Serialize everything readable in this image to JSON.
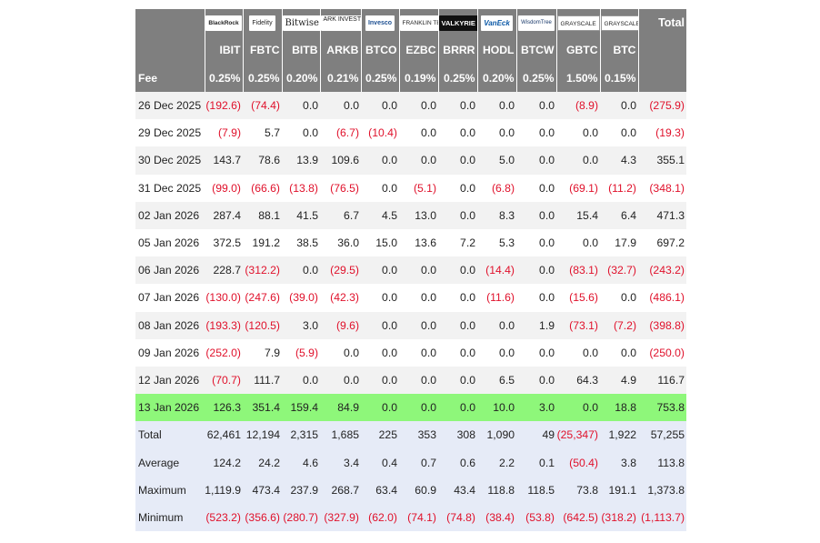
{
  "header": {
    "total_label": "Total",
    "fee_label": "Fee",
    "funds": [
      {
        "logo": "BlackRock",
        "ticker": "IBIT",
        "fee": "0.25%"
      },
      {
        "logo": "Fidelity",
        "ticker": "FBTC",
        "fee": "0.25%"
      },
      {
        "logo": "Bitwise",
        "ticker": "BITB",
        "fee": "0.20%"
      },
      {
        "logo": "ARK INVEST",
        "ticker": "ARKB",
        "fee": "0.21%"
      },
      {
        "logo": "Invesco",
        "ticker": "BTCO",
        "fee": "0.25%"
      },
      {
        "logo": "FRANKLIN TEMPLETON",
        "ticker": "EZBC",
        "fee": "0.19%"
      },
      {
        "logo": "VALKYRIE",
        "ticker": "BRRR",
        "fee": "0.25%"
      },
      {
        "logo": "VanEck",
        "ticker": "HODL",
        "fee": "0.20%"
      },
      {
        "logo": "WisdomTree",
        "ticker": "BTCW",
        "fee": "0.25%"
      },
      {
        "logo": "GRAYSCALE",
        "ticker": "GBTC",
        "fee": "1.50%"
      },
      {
        "logo": "GRAYSCALE",
        "ticker": "BTC",
        "fee": "0.15%"
      }
    ]
  },
  "rows": [
    {
      "date": "26 Dec 2025",
      "values": [
        "(192.6)",
        "(74.4)",
        "0.0",
        "0.0",
        "0.0",
        "0.0",
        "0.0",
        "0.0",
        "0.0",
        "(8.9)",
        "0.0"
      ],
      "total": "(275.9)"
    },
    {
      "date": "29 Dec 2025",
      "values": [
        "(7.9)",
        "5.7",
        "0.0",
        "(6.7)",
        "(10.4)",
        "0.0",
        "0.0",
        "0.0",
        "0.0",
        "0.0",
        "0.0"
      ],
      "total": "(19.3)"
    },
    {
      "date": "30 Dec 2025",
      "values": [
        "143.7",
        "78.6",
        "13.9",
        "109.6",
        "0.0",
        "0.0",
        "0.0",
        "5.0",
        "0.0",
        "0.0",
        "4.3"
      ],
      "total": "355.1"
    },
    {
      "date": "31 Dec 2025",
      "values": [
        "(99.0)",
        "(66.6)",
        "(13.8)",
        "(76.5)",
        "0.0",
        "(5.1)",
        "0.0",
        "(6.8)",
        "0.0",
        "(69.1)",
        "(11.2)"
      ],
      "total": "(348.1)"
    },
    {
      "date": "02 Jan 2026",
      "values": [
        "287.4",
        "88.1",
        "41.5",
        "6.7",
        "4.5",
        "13.0",
        "0.0",
        "8.3",
        "0.0",
        "15.4",
        "6.4"
      ],
      "total": "471.3"
    },
    {
      "date": "05 Jan 2026",
      "values": [
        "372.5",
        "191.2",
        "38.5",
        "36.0",
        "15.0",
        "13.6",
        "7.2",
        "5.3",
        "0.0",
        "0.0",
        "17.9"
      ],
      "total": "697.2"
    },
    {
      "date": "06 Jan 2026",
      "values": [
        "228.7",
        "(312.2)",
        "0.0",
        "(29.5)",
        "0.0",
        "0.0",
        "0.0",
        "(14.4)",
        "0.0",
        "(83.1)",
        "(32.7)"
      ],
      "total": "(243.2)"
    },
    {
      "date": "07 Jan 2026",
      "values": [
        "(130.0)",
        "(247.6)",
        "(39.0)",
        "(42.3)",
        "0.0",
        "0.0",
        "0.0",
        "(11.6)",
        "0.0",
        "(15.6)",
        "0.0"
      ],
      "total": "(486.1)"
    },
    {
      "date": "08 Jan 2026",
      "values": [
        "(193.3)",
        "(120.5)",
        "3.0",
        "(9.6)",
        "0.0",
        "0.0",
        "0.0",
        "0.0",
        "1.9",
        "(73.1)",
        "(7.2)"
      ],
      "total": "(398.8)"
    },
    {
      "date": "09 Jan 2026",
      "values": [
        "(252.0)",
        "7.9",
        "(5.9)",
        "0.0",
        "0.0",
        "0.0",
        "0.0",
        "0.0",
        "0.0",
        "0.0",
        "0.0"
      ],
      "total": "(250.0)"
    },
    {
      "date": "12 Jan 2026",
      "values": [
        "(70.7)",
        "111.7",
        "0.0",
        "0.0",
        "0.0",
        "0.0",
        "0.0",
        "6.5",
        "0.0",
        "64.3",
        "4.9"
      ],
      "total": "116.7"
    },
    {
      "date": "13 Jan 2026",
      "values": [
        "126.3",
        "351.4",
        "159.4",
        "84.9",
        "0.0",
        "0.0",
        "0.0",
        "10.0",
        "3.0",
        "0.0",
        "18.8"
      ],
      "total": "753.8",
      "highlight": true
    }
  ],
  "summary": [
    {
      "label": "Total",
      "values": [
        "62,461",
        "12,194",
        "2,315",
        "1,685",
        "225",
        "353",
        "308",
        "1,090",
        "49",
        "(25,347)",
        "1,922"
      ],
      "total": "57,255"
    },
    {
      "label": "Average",
      "values": [
        "124.2",
        "24.2",
        "4.6",
        "3.4",
        "0.4",
        "0.7",
        "0.6",
        "2.2",
        "0.1",
        "(50.4)",
        "3.8"
      ],
      "total": "113.8"
    },
    {
      "label": "Maximum",
      "values": [
        "1,119.9",
        "473.4",
        "237.9",
        "268.7",
        "63.4",
        "60.9",
        "43.4",
        "118.8",
        "118.5",
        "73.8",
        "191.1"
      ],
      "total": "1,373.8"
    },
    {
      "label": "Minimum",
      "values": [
        "(523.2)",
        "(356.6)",
        "(280.7)",
        "(327.9)",
        "(62.0)",
        "(74.1)",
        "(74.8)",
        "(38.4)",
        "(53.8)",
        "(642.5)",
        "(318.2)"
      ],
      "total": "(1,113.7)"
    }
  ],
  "colors": {
    "header_bg": "#7f7f7f",
    "negative": "#e0112b",
    "highlight_row": "#8ef77a",
    "summary_bg": "#e6ebf7"
  }
}
